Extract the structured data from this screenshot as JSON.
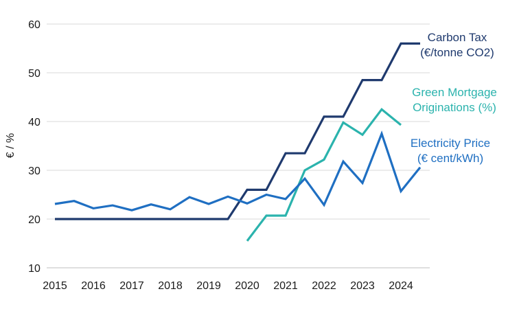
{
  "chart_data": {
    "type": "line",
    "ylabel": "€ / %",
    "ylim": [
      10,
      60
    ],
    "xlim": [
      2015,
      2024.5
    ],
    "yticks": [
      "10",
      "20",
      "30",
      "40",
      "50",
      "60"
    ],
    "xticks": [
      "2015",
      "2016",
      "2017",
      "2018",
      "2019",
      "2020",
      "2021",
      "2022",
      "2023",
      "2024"
    ],
    "grid": "horizontal",
    "series": [
      {
        "label_lines": [
          "Carbon Tax",
          "(€/tonne CO2)"
        ],
        "color": "#1f3a6e",
        "x": [
          2015,
          2015.5,
          2016,
          2016.5,
          2017,
          2017.5,
          2018,
          2018.5,
          2019,
          2019.5,
          2020,
          2020.5,
          2021,
          2021.5,
          2022,
          2022.5,
          2023,
          2023.5,
          2024,
          2024.5
        ],
        "y": [
          20,
          20,
          20,
          20,
          20,
          20,
          20,
          20,
          20,
          20,
          26,
          26,
          33.5,
          33.5,
          41,
          41,
          48.5,
          48.5,
          56,
          56
        ]
      },
      {
        "label_lines": [
          "Green Mortgage",
          "Originations (%)"
        ],
        "color": "#2bb3ad",
        "x": [
          2020,
          2020.5,
          2021,
          2021.5,
          2022,
          2022.5,
          2023,
          2023.5,
          2024
        ],
        "y": [
          15.5,
          20.7,
          20.7,
          30,
          32.2,
          39.8,
          37.3,
          42.5,
          39.3
        ]
      },
      {
        "label_lines": [
          "Electricity Price",
          "(€ cent/kWh)"
        ],
        "color": "#1f6fc2",
        "x": [
          2015,
          2015.5,
          2016,
          2016.5,
          2017,
          2017.5,
          2018,
          2018.5,
          2019,
          2019.5,
          2020,
          2020.5,
          2021,
          2021.5,
          2022,
          2022.5,
          2023,
          2023.5,
          2024,
          2024.5
        ],
        "y": [
          23.1,
          23.7,
          22.2,
          22.8,
          21.8,
          23,
          22,
          24.5,
          23.1,
          24.6,
          23.2,
          25,
          24.1,
          28.3,
          22.9,
          31.8,
          27.4,
          37.5,
          25.7,
          30.6
        ]
      }
    ]
  }
}
